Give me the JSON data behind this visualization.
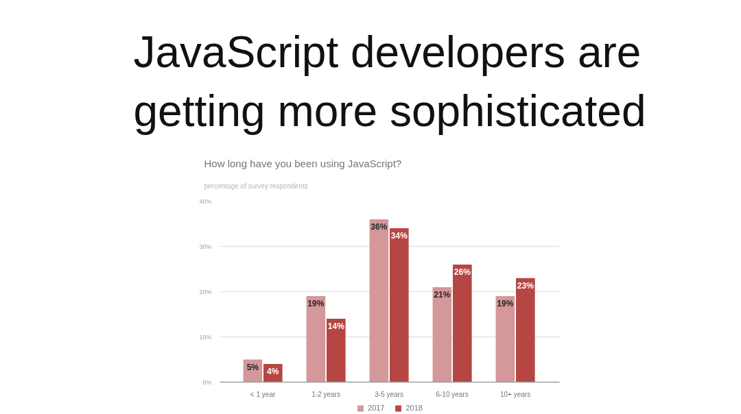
{
  "chart_data": {
    "type": "bar",
    "title": "JavaScript developers are getting more sophisticated",
    "subtitle": "How long have you been using JavaScript?",
    "annotations": [
      "percentage of survey respondents"
    ],
    "categories": [
      "< 1 year",
      "1-2 years",
      "3-5 years",
      "6-10 years",
      "10+ years"
    ],
    "series": [
      {
        "name": "2017",
        "color": "#d4979a",
        "values": [
          5,
          19,
          36,
          21,
          19
        ],
        "value_labels": [
          "5%",
          "19%",
          "36%",
          "21%",
          "19%"
        ]
      },
      {
        "name": "2018",
        "color": "#b64643",
        "values": [
          4,
          14,
          34,
          26,
          23
        ],
        "value_labels": [
          "4%",
          "14%",
          "34%",
          "26%",
          "23%"
        ]
      }
    ],
    "ylim": [
      0,
      40
    ],
    "yticks": [
      {
        "value": 0,
        "label": "0%"
      },
      {
        "value": 10,
        "label": "10%"
      },
      {
        "value": 20,
        "label": "20%"
      },
      {
        "value": 30,
        "label": "30%"
      },
      {
        "value": 40,
        "label": "40%"
      }
    ],
    "grid": "y",
    "legend": "bottom"
  }
}
